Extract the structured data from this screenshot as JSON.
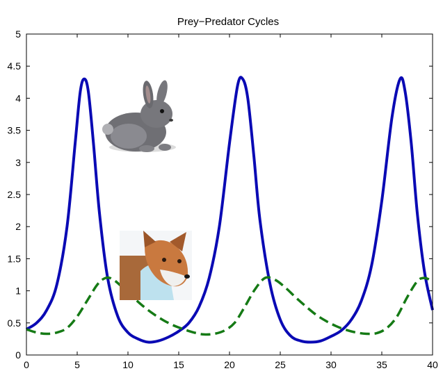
{
  "chart_data": {
    "type": "line",
    "title": "Prey−Predator Cycles",
    "xlabel": "",
    "ylabel": "",
    "xlim": [
      0,
      40
    ],
    "ylim": [
      0,
      5
    ],
    "x_ticks": [
      0,
      5,
      10,
      15,
      20,
      25,
      30,
      35,
      40
    ],
    "y_ticks": [
      0,
      0.5,
      1,
      1.5,
      2,
      2.5,
      3,
      3.5,
      4,
      4.5,
      5
    ],
    "x_tick_labels": [
      "0",
      "5",
      "10",
      "15",
      "20",
      "25",
      "30",
      "35",
      "40"
    ],
    "y_tick_labels": [
      "0",
      "0.5",
      "1",
      "1.5",
      "2",
      "2.5",
      "3",
      "3.5",
      "4",
      "4.5",
      "5"
    ],
    "grid": false,
    "legend": "none",
    "series": [
      {
        "color": "#0a0ab4",
        "line_style": "solid",
        "image_icon": "rabbit-icon",
        "points": [
          [
            0,
            0.4
          ],
          [
            1,
            0.5
          ],
          [
            2,
            0.7
          ],
          [
            3,
            1.1
          ],
          [
            4,
            2.0
          ],
          [
            4.8,
            3.3
          ],
          [
            5.3,
            4.1
          ],
          [
            5.7,
            4.3
          ],
          [
            6.1,
            4.1
          ],
          [
            6.6,
            3.3
          ],
          [
            7.2,
            2.2
          ],
          [
            8,
            1.2
          ],
          [
            9,
            0.6
          ],
          [
            10,
            0.35
          ],
          [
            11,
            0.25
          ],
          [
            12,
            0.2
          ],
          [
            13,
            0.22
          ],
          [
            14,
            0.28
          ],
          [
            15,
            0.37
          ],
          [
            16,
            0.5
          ],
          [
            17,
            0.75
          ],
          [
            18,
            1.2
          ],
          [
            19,
            2.0
          ],
          [
            20,
            3.3
          ],
          [
            20.8,
            4.2
          ],
          [
            21.3,
            4.3
          ],
          [
            21.8,
            4.0
          ],
          [
            22.4,
            3.1
          ],
          [
            23,
            2.1
          ],
          [
            24,
            1.1
          ],
          [
            25,
            0.55
          ],
          [
            26,
            0.3
          ],
          [
            27,
            0.22
          ],
          [
            28,
            0.2
          ],
          [
            29,
            0.22
          ],
          [
            30,
            0.29
          ],
          [
            31,
            0.38
          ],
          [
            32,
            0.55
          ],
          [
            33,
            0.85
          ],
          [
            34,
            1.4
          ],
          [
            35,
            2.4
          ],
          [
            36,
            3.7
          ],
          [
            36.8,
            4.3
          ],
          [
            37.3,
            4.1
          ],
          [
            37.9,
            3.3
          ],
          [
            38.5,
            2.2
          ],
          [
            39.2,
            1.3
          ],
          [
            40,
            0.7
          ]
        ]
      },
      {
        "color": "#157a15",
        "line_style": "dashed",
        "image_icon": "fox-icon",
        "points": [
          [
            0,
            0.4
          ],
          [
            1,
            0.35
          ],
          [
            2,
            0.33
          ],
          [
            3,
            0.35
          ],
          [
            4,
            0.42
          ],
          [
            5,
            0.6
          ],
          [
            6,
            0.85
          ],
          [
            7,
            1.1
          ],
          [
            7.8,
            1.2
          ],
          [
            8.5,
            1.18
          ],
          [
            9.5,
            1.05
          ],
          [
            10.5,
            0.9
          ],
          [
            11.5,
            0.76
          ],
          [
            12.5,
            0.64
          ],
          [
            13.5,
            0.54
          ],
          [
            14.5,
            0.46
          ],
          [
            15.5,
            0.4
          ],
          [
            16.5,
            0.35
          ],
          [
            17.5,
            0.32
          ],
          [
            18.5,
            0.33
          ],
          [
            19.5,
            0.38
          ],
          [
            20.5,
            0.5
          ],
          [
            21.5,
            0.75
          ],
          [
            22.5,
            1.02
          ],
          [
            23.5,
            1.2
          ],
          [
            24.5,
            1.17
          ],
          [
            25.5,
            1.05
          ],
          [
            26.5,
            0.9
          ],
          [
            27.5,
            0.76
          ],
          [
            28.5,
            0.63
          ],
          [
            29.5,
            0.53
          ],
          [
            30.5,
            0.45
          ],
          [
            31.5,
            0.39
          ],
          [
            32.5,
            0.35
          ],
          [
            33.5,
            0.33
          ],
          [
            34.5,
            0.34
          ],
          [
            35.5,
            0.42
          ],
          [
            36.5,
            0.6
          ],
          [
            37.5,
            0.9
          ],
          [
            38.5,
            1.15
          ],
          [
            39.2,
            1.2
          ],
          [
            40,
            1.15
          ]
        ]
      }
    ]
  }
}
